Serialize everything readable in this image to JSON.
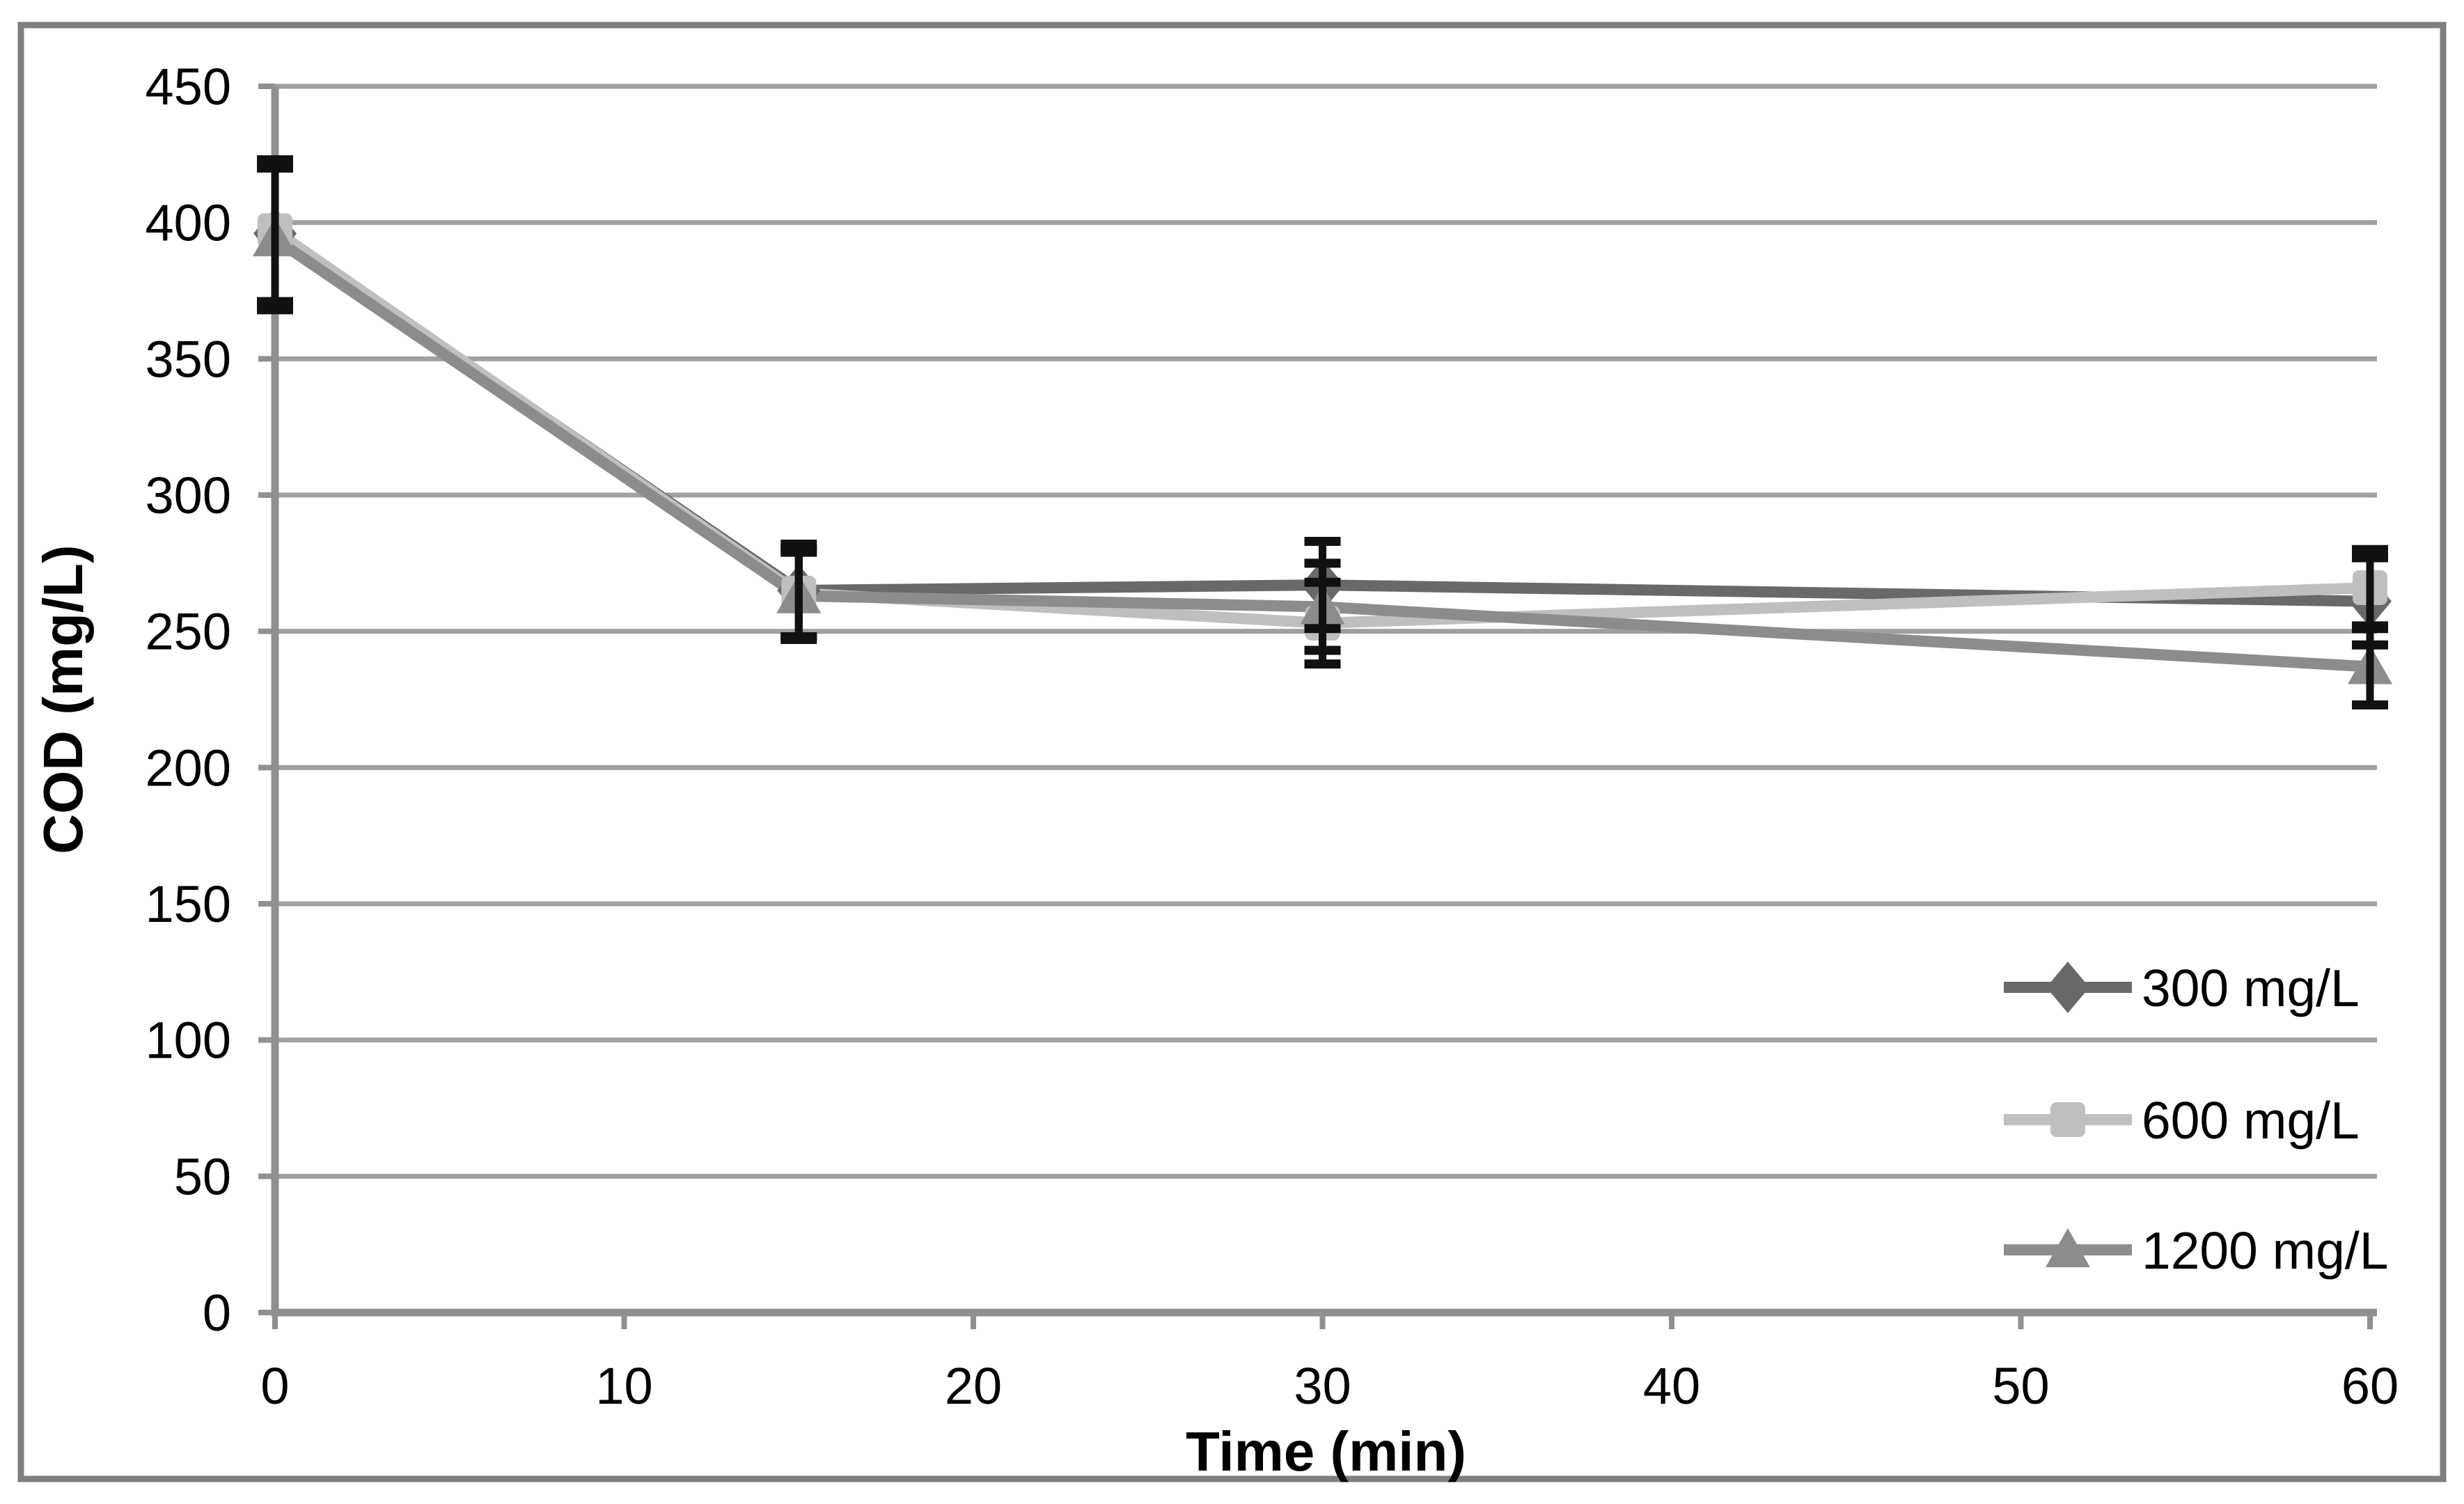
{
  "figure": {
    "background": "#ffffff"
  },
  "chart_data": {
    "type": "line",
    "title": "",
    "xlabel": "Time (min)",
    "ylabel": "COD (mg/L)",
    "x": [
      0,
      15,
      30,
      60
    ],
    "series": [
      {
        "name": "300 mg/L",
        "marker": "diamond",
        "color": "#696969",
        "values": [
          396,
          265,
          267,
          261
        ],
        "error": [
          27,
          17,
          16,
          16
        ]
      },
      {
        "name": "600 mg/L",
        "marker": "square",
        "color": "#bfbfbf",
        "values": [
          397,
          264,
          253,
          266
        ],
        "error": [
          26,
          16,
          15,
          14
        ]
      },
      {
        "name": "1200 mg/L",
        "marker": "triangle",
        "color": "#8c8c8c",
        "values": [
          394,
          263,
          259,
          237
        ],
        "error": [
          26,
          16,
          16,
          14
        ]
      }
    ],
    "xlim": [
      0,
      60
    ],
    "ylim": [
      0,
      450
    ],
    "x_ticks": [
      0,
      10,
      20,
      30,
      40,
      50,
      60
    ],
    "y_ticks": [
      0,
      50,
      100,
      150,
      200,
      250,
      300,
      350,
      400,
      450
    ],
    "grid": "horizontal-only",
    "legend_position": "inside-right",
    "colors": {
      "gridline": "#a0a0a0",
      "axis": "#909090",
      "border": "#7f7f7f",
      "error_bar": "#111111",
      "text": "#000000",
      "background": "#ffffff"
    }
  }
}
